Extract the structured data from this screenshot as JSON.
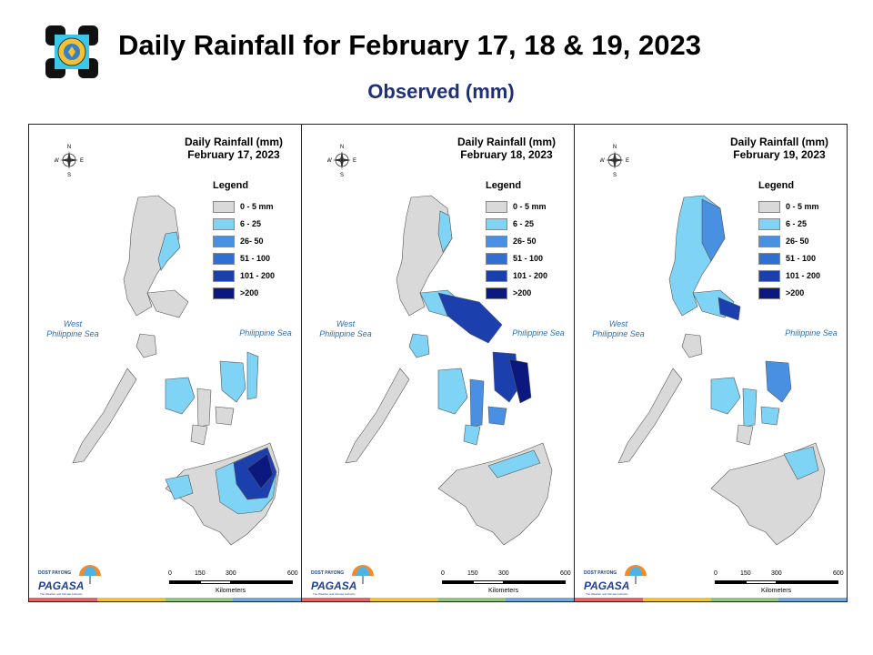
{
  "page": {
    "title": "Daily Rainfall for February 17, 18 & 19, 2023",
    "subtitle": "Observed (mm)"
  },
  "legend": {
    "title": "Legend",
    "items": [
      {
        "label": "0 - 5 mm",
        "color": "#d9d9d9"
      },
      {
        "label": "6 - 25",
        "color": "#7fd3f5"
      },
      {
        "label": "26- 50",
        "color": "#4a90e2"
      },
      {
        "label": "51 - 100",
        "color": "#2e6fd1"
      },
      {
        "label": "101 - 200",
        "color": "#1c3fae"
      },
      {
        "label": ">200",
        "color": "#0b1880"
      }
    ]
  },
  "panels": [
    {
      "title_line1": "Daily Rainfall (mm)",
      "title_line2": "February 17, 2023"
    },
    {
      "title_line1": "Daily Rainfall (mm)",
      "title_line2": "February 18, 2023"
    },
    {
      "title_line1": "Daily Rainfall (mm)",
      "title_line2": "February 19, 2023"
    }
  ],
  "seas": {
    "west_line1": "West",
    "west_line2": "Philippine Sea",
    "east": "Philippine Sea"
  },
  "compass": {
    "n": "N",
    "s": "S",
    "e": "E",
    "w": "W"
  },
  "scale": {
    "ticks": [
      "0",
      "150",
      "300",
      "600"
    ],
    "unit": "Kilometers"
  },
  "branding": {
    "agency": "PAGASA",
    "prefix": "DOST PAYONG",
    "tagline": "The Weather and Climate Authority"
  },
  "colors": {
    "title": "#000000",
    "subtitle": "#1f2f78",
    "sea_label": "#2f6db3",
    "land_default": "#d9d9d9"
  }
}
